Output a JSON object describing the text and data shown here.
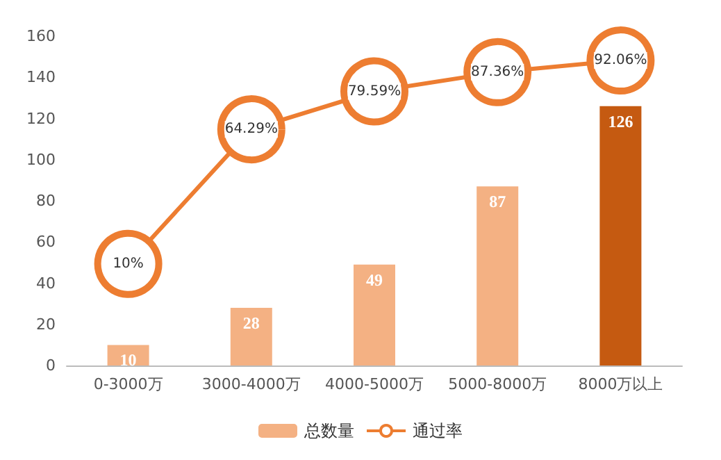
{
  "chart_data": {
    "type": "bar",
    "categories": [
      "0-3000万",
      "3000-4000万",
      "4000-5000万",
      "5000-8000万",
      "8000万以上"
    ],
    "series": [
      {
        "name": "总数量",
        "type": "bar",
        "color": "#f4b183",
        "colors": [
          "#f4b183",
          "#f4b183",
          "#f4b183",
          "#f4b183",
          "#c55a11"
        ],
        "values": [
          10,
          28,
          49,
          87,
          126
        ]
      },
      {
        "name": "通过率",
        "type": "line",
        "axis": "y2",
        "color": "#ed7d31",
        "values": [
          10,
          64.29,
          79.59,
          87.36,
          92.06
        ],
        "value_labels": [
          "10%",
          "64.29%",
          "79.59%",
          "87.36%",
          "92.06%"
        ]
      }
    ],
    "ylim": [
      0,
      160
    ],
    "yticks": [
      0,
      20,
      40,
      60,
      80,
      100,
      120,
      140,
      160
    ],
    "data_labels": true,
    "grid": false,
    "legend": "bottom",
    "marker": "circle",
    "line_style": "solid"
  }
}
